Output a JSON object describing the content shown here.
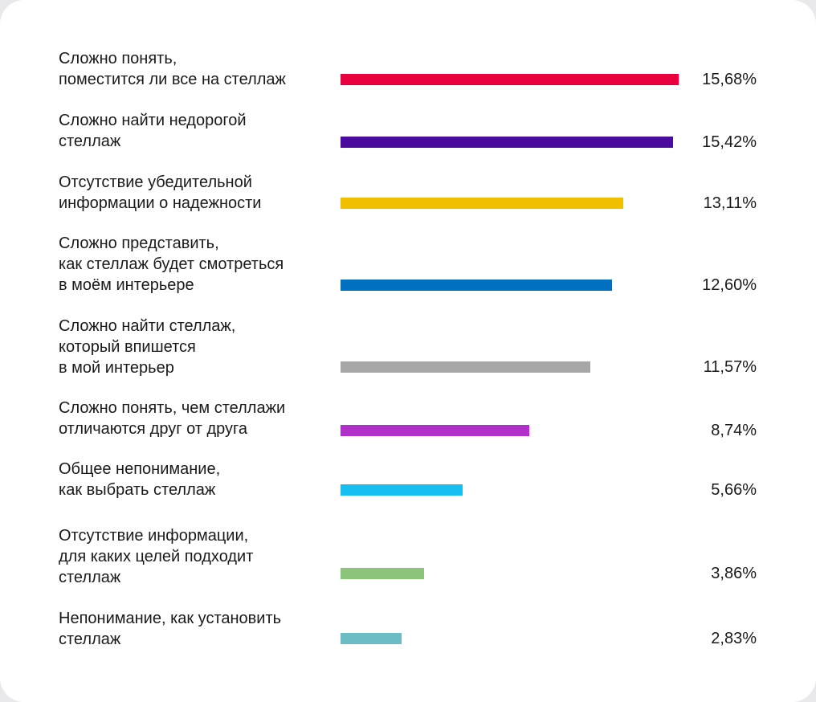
{
  "chart_data": {
    "type": "bar",
    "orientation": "horizontal",
    "categories": [
      "Сложно понять,\nпоместится ли все на стеллаж",
      "Сложно найти недорогой\nстеллаж",
      "Отсутствие убедительной\nинформации о надежности",
      "Сложно представить,\nкак стеллаж будет смотреться\nв моём интерьере",
      "Сложно найти стеллаж,\nкоторый впишется\nв мой интерьер",
      "Сложно понять, чем стеллажи\nотличаются друг от друга",
      "Общее непонимание,\nкак выбрать стеллаж",
      "Отсутствие информации,\nдля каких целей подходит\nстеллаж",
      "Непонимание, как установить\nстеллаж"
    ],
    "values": [
      15.68,
      15.42,
      13.11,
      12.6,
      11.57,
      8.74,
      5.66,
      3.86,
      2.83
    ],
    "value_labels": [
      "15,68%",
      "15,42%",
      "13,11%",
      "12,60%",
      "11,57%",
      "8,74%",
      "5,66%",
      "3,86%",
      "2,83%"
    ],
    "colors": [
      "#e8003f",
      "#4b0a9e",
      "#f0c000",
      "#0070c0",
      "#a6a6a6",
      "#b030c8",
      "#15c0f0",
      "#8cc47a",
      "#6cbcc4"
    ],
    "grid": false,
    "legend": "none"
  }
}
